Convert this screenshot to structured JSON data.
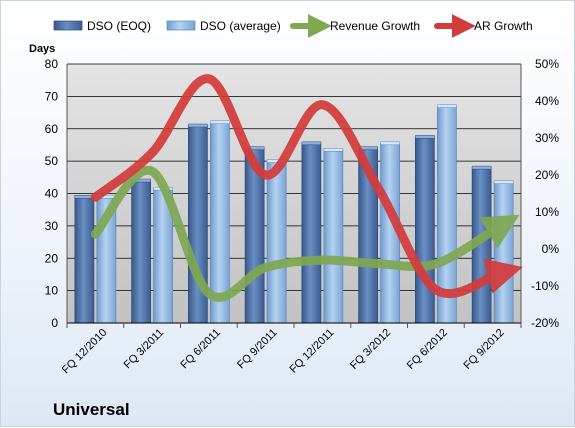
{
  "chart_data": {
    "type": "bar",
    "title": "",
    "brand_label": "Universal",
    "y_left_label": "Days",
    "y_left_ticks": [
      "0",
      "10",
      "20",
      "30",
      "40",
      "50",
      "60",
      "70",
      "80"
    ],
    "y_right_ticks": [
      "-20%",
      "-10%",
      "0%",
      "10%",
      "20%",
      "30%",
      "40%",
      "50%"
    ],
    "ylim_left": [
      0,
      80
    ],
    "ylim_right": [
      -0.2,
      0.5
    ],
    "grid": true,
    "legend_position": "top",
    "categories": [
      "FQ 12/2010",
      "FQ 3/2011",
      "FQ 6/2011",
      "FQ 9/2011",
      "FQ 12/2011",
      "FQ 3/2012",
      "FQ 6/2012",
      "FQ 9/2012"
    ],
    "series": [
      {
        "name": "DSO (EOQ)",
        "kind": "bar",
        "axis": "left",
        "color": "#4a6fa5",
        "values": [
          39,
          44,
          61,
          54,
          55.5,
          54,
          57.5,
          48
        ]
      },
      {
        "name": "DSO (average)",
        "kind": "bar",
        "axis": "left",
        "color": "#8fb4de",
        "values": [
          39,
          41.5,
          62,
          50,
          53.5,
          55.5,
          67,
          43.5
        ]
      },
      {
        "name": "Revenue Growth",
        "kind": "line",
        "axis": "right",
        "color": "#7ea852",
        "values": [
          0.04,
          0.21,
          -0.12,
          -0.05,
          -0.03,
          -0.04,
          -0.04,
          0.05
        ]
      },
      {
        "name": "AR Growth",
        "kind": "line",
        "axis": "right",
        "color": "#d43b3b",
        "values": [
          0.14,
          0.26,
          0.46,
          0.2,
          0.39,
          0.16,
          -0.11,
          -0.07
        ]
      }
    ]
  }
}
